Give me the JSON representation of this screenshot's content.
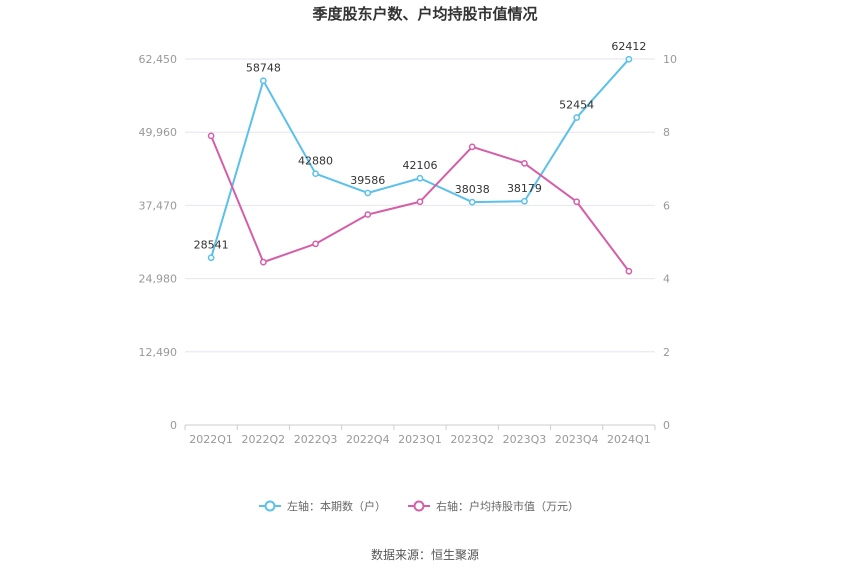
{
  "chart_data": {
    "type": "line",
    "title": "季度股东户数、户均持股市值情况",
    "categories": [
      "2022Q1",
      "2022Q2",
      "2022Q3",
      "2022Q4",
      "2023Q1",
      "2023Q2",
      "2023Q3",
      "2023Q4",
      "2024Q1"
    ],
    "y_left": {
      "ticks": [
        "0",
        "12,490",
        "24,980",
        "37,470",
        "49,960",
        "62,450"
      ],
      "min": 0,
      "max": 62450
    },
    "y_right": {
      "ticks": [
        "0",
        "2",
        "4",
        "6",
        "8",
        "10"
      ],
      "min": 0,
      "max": 10
    },
    "grid": true,
    "legend_position": "bottom",
    "series": [
      {
        "name": "左轴：本期数（户）",
        "axis": "left",
        "color": "#5bc0eb",
        "values": [
          28541,
          58748,
          42880,
          39586,
          42106,
          38038,
          38179,
          52454,
          62412
        ],
        "labels": [
          "28541",
          "58748",
          "42880",
          "39586",
          "42106",
          "38038",
          "38179",
          "52454",
          "62412"
        ]
      },
      {
        "name": "右轴：户均持股市值（万元）",
        "axis": "right",
        "color": "#d45fa8",
        "values": [
          7.9,
          4.45,
          4.95,
          5.75,
          6.1,
          7.6,
          7.15,
          6.1,
          4.2
        ]
      }
    ]
  },
  "source": "数据来源：恒生聚源"
}
